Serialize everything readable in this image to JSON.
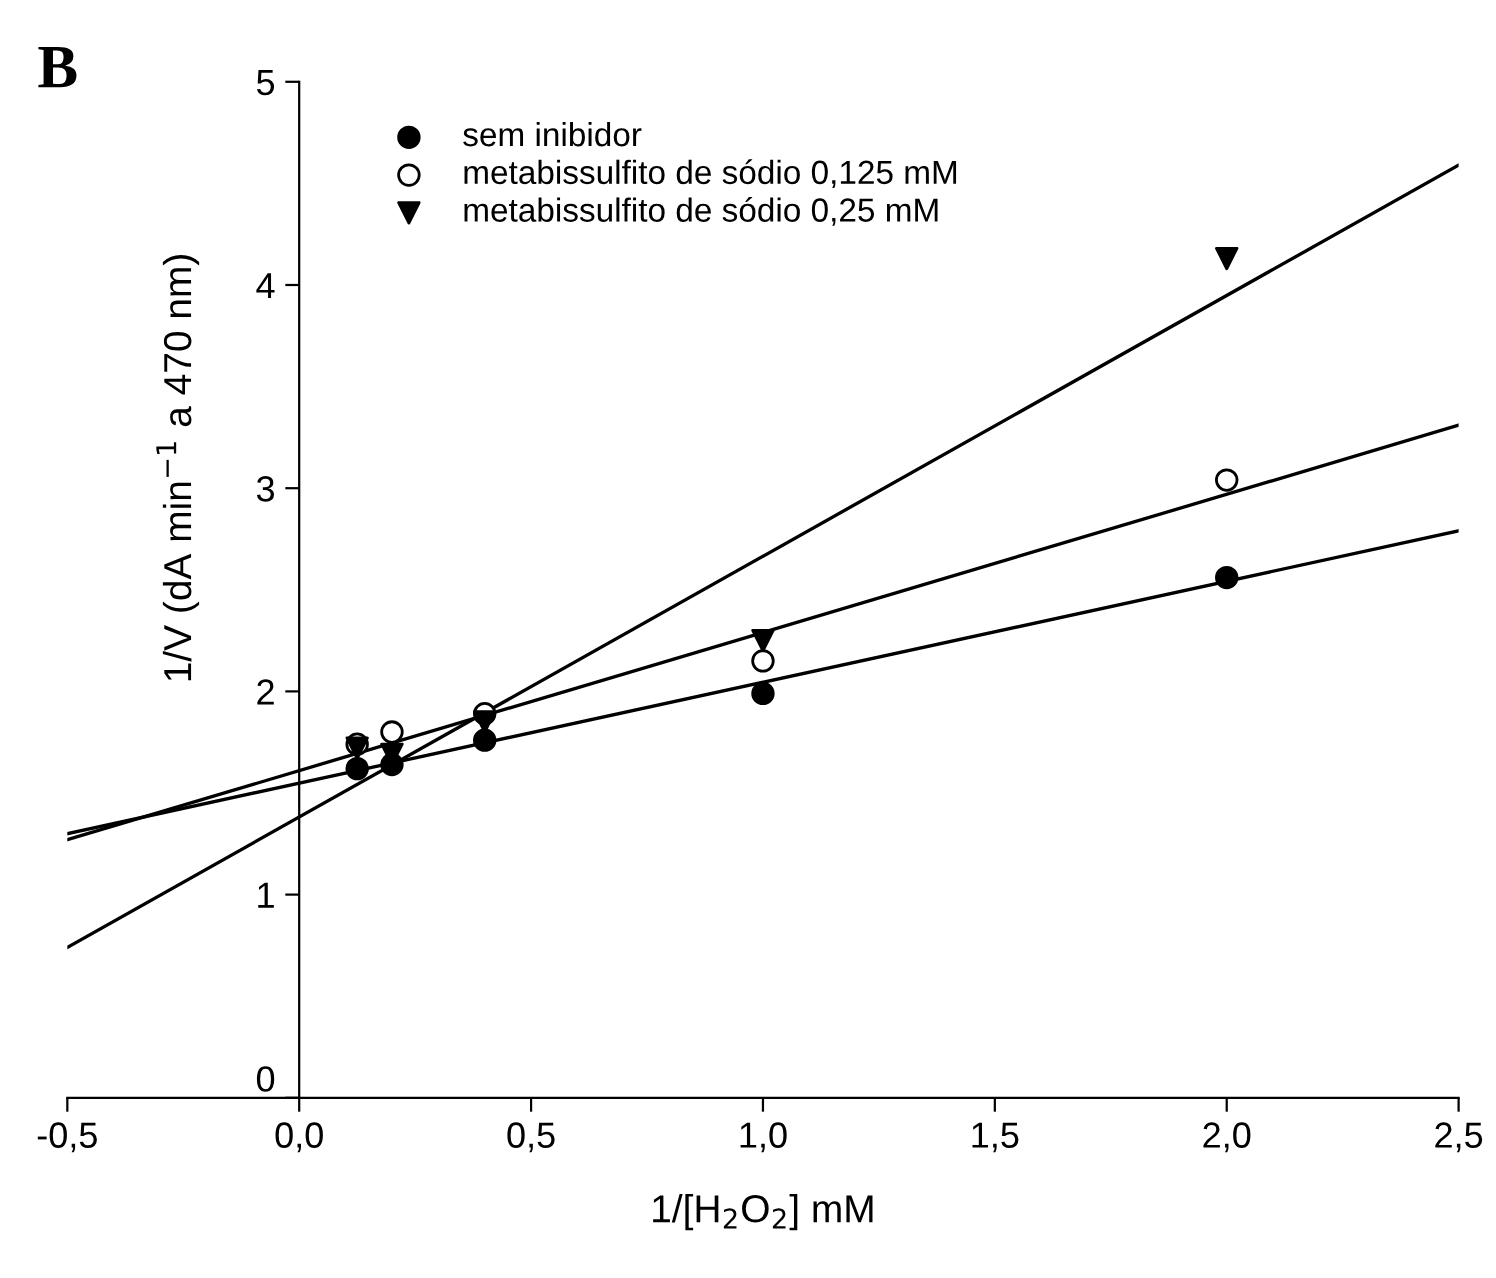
{
  "chart_data": {
    "type": "scatter",
    "xlabel": "1/[H$_{2}$O$_{2}$] mM",
    "ylabel": "1/V (dA min$^{−1}$ a 470 nm)",
    "annotations": [
      "B"
    ],
    "xlim": [
      -0.5,
      2.5
    ],
    "xticks": [
      {
        "value": -0.5,
        "label": "-0,5"
      },
      {
        "value": 0,
        "label": "0,0"
      },
      {
        "value": 0.5,
        "label": "0,5"
      },
      {
        "value": 1,
        "label": "1,0"
      },
      {
        "value": 1.5,
        "label": "1,5"
      },
      {
        "value": 2,
        "label": "2,0"
      },
      {
        "value": 2.5,
        "label": "2,5"
      }
    ],
    "ylim": [
      0,
      5
    ],
    "yticks": [
      0,
      1,
      2,
      3,
      4,
      5
    ],
    "grid": false,
    "legend": "top left",
    "series": [
      {
        "name": "sem inibidor",
        "marker": "circle",
        "color": "#000000",
        "x": [
          0.125,
          0.2,
          0.4,
          1.0,
          2.0
        ],
        "values": [
          1.62,
          1.64,
          1.76,
          1.99,
          2.56
        ]
      },
      {
        "name": "metabissulfito de sódio 0,125 mM",
        "marker": "circle",
        "color": "#ffffff",
        "x": [
          0.125,
          0.2,
          0.4,
          1.0,
          2.0
        ],
        "values": [
          1.74,
          1.8,
          1.89,
          2.15,
          3.04
        ]
      },
      {
        "name": "metabissulfito de sódio 0,25 mM",
        "marker": "triangle",
        "color": "#000000",
        "x": [
          0.125,
          0.2,
          0.4,
          1.0,
          2.0
        ],
        "values": [
          1.72,
          1.69,
          1.85,
          2.25,
          4.13
        ]
      },
      {
        "type": "line",
        "color": "#000000",
        "line_style": "solid",
        "x": [
          -0.5,
          2.5
        ],
        "values": [
          1.3,
          2.79
        ]
      },
      {
        "type": "line",
        "color": "#000000",
        "line_style": "solid",
        "x": [
          -0.5,
          2.5
        ],
        "values": [
          1.27,
          3.31
        ]
      },
      {
        "type": "line",
        "color": "#000000",
        "line_style": "solid",
        "x": [
          -0.5,
          2.5
        ],
        "values": [
          0.74,
          4.59
        ]
      }
    ]
  }
}
